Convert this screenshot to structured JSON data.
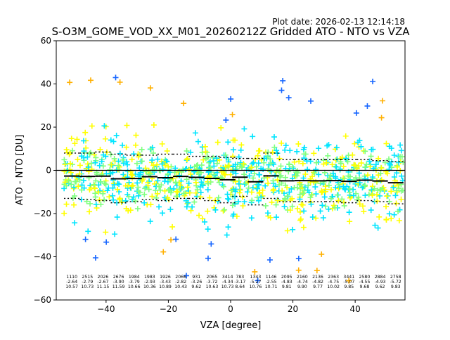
{
  "header": {
    "plot_date": "Plot date: 2026-02-13 12:14:18"
  },
  "chart_data": {
    "type": "scatter",
    "title": "S-O3M_GOME_VOD_XX_M01_20260212Z Gridded ATO - NTO vs VZA",
    "xlabel": "VZA [degree]",
    "ylabel": "ATO - NTO [DU]",
    "xlim": [
      -56,
      56
    ],
    "ylim": [
      -60,
      60
    ],
    "xticks": [
      -40,
      -20,
      0,
      20,
      40
    ],
    "xtick_labels": [
      "−40",
      "−20",
      "0",
      "20",
      "40"
    ],
    "yticks": [
      -60,
      -40,
      -20,
      0,
      20,
      40,
      60
    ],
    "ytick_labels": [
      "−60",
      "−40",
      "−20",
      "0",
      "20",
      "40",
      "60"
    ],
    "marker": "+",
    "marker_colors": [
      "#00e5ff",
      "#7fff7f",
      "#ffff00",
      "#ffb000",
      "#1565ff",
      "#00c8ff"
    ],
    "zero_line": 0,
    "bins": [
      {
        "x": -51,
        "count": "1110",
        "mean": "-2.64",
        "std": "10.57",
        "q_low": -13,
        "q_high": 8
      },
      {
        "x": -46,
        "count": "2515",
        "mean": "-2.79",
        "std": "10.73",
        "q_low": -13.5,
        "q_high": 8
      },
      {
        "x": -41,
        "count": "2026",
        "mean": "-2.67",
        "std": "11.15",
        "q_low": -14,
        "q_high": 8.5
      },
      {
        "x": -36,
        "count": "2676",
        "mean": "-3.90",
        "std": "11.59",
        "q_low": -15,
        "q_high": 7.5
      },
      {
        "x": -31,
        "count": "1984",
        "mean": "-3.79",
        "std": "10.66",
        "q_low": -14.5,
        "q_high": 7
      },
      {
        "x": -26,
        "count": "1983",
        "mean": "-2.93",
        "std": "10.36",
        "q_low": -13.5,
        "q_high": 7
      },
      {
        "x": -21,
        "count": "1926",
        "mean": "-3.43",
        "std": "10.89",
        "q_low": -14,
        "q_high": 7.5
      },
      {
        "x": -16,
        "count": "2066",
        "mean": "-2.82",
        "std": "10.43",
        "q_low": -13,
        "q_high": 7.5
      },
      {
        "x": -11,
        "count": "931",
        "mean": "-3.26",
        "std": "9.62",
        "q_low": -13,
        "q_high": 6.5
      },
      {
        "x": -6,
        "count": "2065",
        "mean": "-3.72",
        "std": "10.63",
        "q_low": -14,
        "q_high": 6.5
      },
      {
        "x": -1,
        "count": "3414",
        "mean": "-4.34",
        "std": "10.73",
        "q_low": -15,
        "q_high": 6
      },
      {
        "x": 3,
        "count": "783",
        "mean": "-3.17",
        "std": "8.64",
        "q_low": -12,
        "q_high": 5.5
      },
      {
        "x": 8,
        "count": "1343",
        "mean": "-5.27",
        "std": "10.76",
        "q_low": -16,
        "q_high": 5.5
      },
      {
        "x": 13,
        "count": "1146",
        "mean": "-2.55",
        "std": "10.71",
        "q_low": -13,
        "q_high": 8
      },
      {
        "x": 18,
        "count": "2095",
        "mean": "-4.83",
        "std": "9.81",
        "q_low": -14.5,
        "q_high": 5
      },
      {
        "x": 23,
        "count": "2160",
        "mean": "-4.74",
        "std": "9.90",
        "q_low": -14.5,
        "q_high": 5
      },
      {
        "x": 28,
        "count": "2136",
        "mean": "-4.82",
        "std": "9.77",
        "q_low": -14.5,
        "q_high": 5
      },
      {
        "x": 33,
        "count": "2363",
        "mean": "-4.75",
        "std": "10.02",
        "q_low": -14.5,
        "q_high": 5
      },
      {
        "x": 38,
        "count": "3441",
        "mean": "-5.07",
        "std": "9.85",
        "q_low": -15,
        "q_high": 5
      },
      {
        "x": 43,
        "count": "2580",
        "mean": "-4.55",
        "std": "9.68",
        "q_low": -14,
        "q_high": 5
      },
      {
        "x": 48,
        "count": "2884",
        "mean": "-4.93",
        "std": "9.62",
        "q_low": -14.5,
        "q_high": 4.5
      },
      {
        "x": 53,
        "count": "2758",
        "mean": "-5.72",
        "std": "9.83",
        "q_low": -15.5,
        "q_high": 4
      }
    ]
  }
}
